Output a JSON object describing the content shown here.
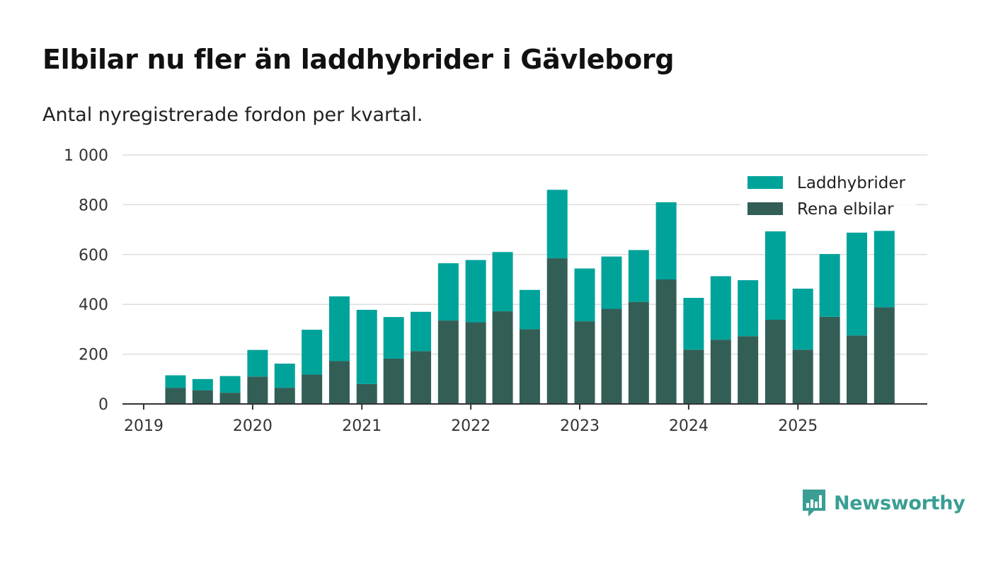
{
  "header": {
    "title": "Elbilar nu fler än laddhybrider i Gävleborg",
    "subtitle": "Antal nyregistrerade fordon per kvartal."
  },
  "brand": {
    "name": "Newsworthy",
    "color": "#3a9e93"
  },
  "colors": {
    "laddhybrider": "#00a39a",
    "rena_elbilar": "#325e56",
    "grid": "#dddddd",
    "axis": "#333333"
  },
  "chart_data": {
    "type": "bar",
    "stacked": true,
    "title": "Elbilar nu fler än laddhybrider i Gävleborg",
    "subtitle": "Antal nyregistrerade fordon per kvartal.",
    "xlabel": "",
    "ylabel": "",
    "ylim": [
      0,
      1000
    ],
    "yticks": [
      {
        "value": 0,
        "label": "0"
      },
      {
        "value": 200,
        "label": "200"
      },
      {
        "value": 400,
        "label": "400"
      },
      {
        "value": 600,
        "label": "600"
      },
      {
        "value": 800,
        "label": "800"
      },
      {
        "value": 1000,
        "label": "1 000"
      }
    ],
    "xlim": [
      "2019-01-01",
      "2026-07-01"
    ],
    "xticks": [
      {
        "date": "2019-01-01",
        "label": "2019"
      },
      {
        "date": "2020-01-01",
        "label": "2020"
      },
      {
        "date": "2021-01-01",
        "label": "2021"
      },
      {
        "date": "2022-01-01",
        "label": "2022"
      },
      {
        "date": "2023-01-01",
        "label": "2023"
      },
      {
        "date": "2024-01-01",
        "label": "2024"
      },
      {
        "date": "2025-01-01",
        "label": "2025"
      }
    ],
    "categories": [
      "2019-04-01",
      "2019-07-01",
      "2019-10-01",
      "2020-01-01",
      "2020-04-01",
      "2020-07-01",
      "2020-10-01",
      "2021-01-01",
      "2021-04-01",
      "2021-07-01",
      "2021-10-01",
      "2022-01-01",
      "2022-04-01",
      "2022-07-01",
      "2022-10-01",
      "2023-01-01",
      "2023-04-01",
      "2023-07-01",
      "2023-10-01",
      "2024-01-01",
      "2024-04-01",
      "2024-07-01",
      "2024-10-01",
      "2025-01-01",
      "2025-04-01",
      "2025-07-01",
      "2025-10-01"
    ],
    "series": [
      {
        "name": "Rena elbilar",
        "color": "#325e56",
        "values": [
          65,
          55,
          45,
          110,
          65,
          118,
          172,
          80,
          182,
          212,
          335,
          328,
          372,
          300,
          585,
          332,
          382,
          410,
          500,
          218,
          258,
          272,
          338,
          218,
          350,
          275,
          388
        ]
      },
      {
        "name": "Laddhybrider",
        "color": "#00a39a",
        "values": [
          50,
          45,
          67,
          107,
          97,
          180,
          260,
          298,
          167,
          158,
          230,
          250,
          238,
          158,
          275,
          212,
          210,
          208,
          310,
          208,
          255,
          225,
          355,
          245,
          252,
          413,
          307
        ]
      }
    ],
    "legend": {
      "position": "top-right",
      "entries": [
        {
          "label": "Laddhybrider",
          "color": "#00a39a"
        },
        {
          "label": "Rena elbilar",
          "color": "#325e56"
        }
      ]
    },
    "grid": true
  }
}
